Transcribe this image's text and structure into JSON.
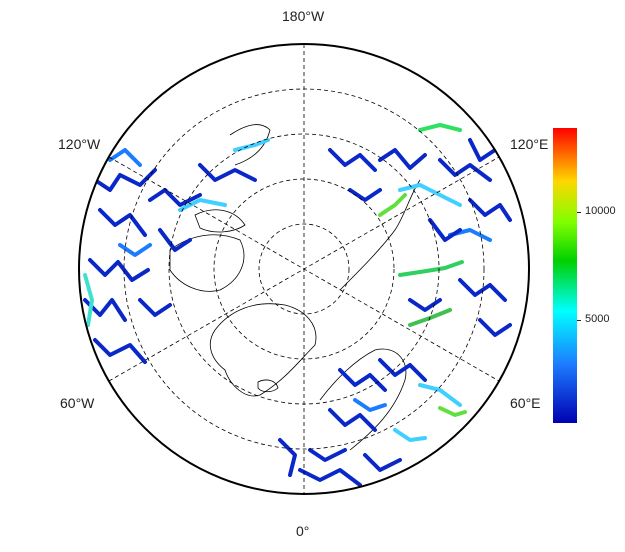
{
  "map": {
    "labels": {
      "top": "180°W",
      "bottom": "0°",
      "upper_left": "120°W",
      "upper_right": "120°E",
      "lower_left": "60°W",
      "lower_right": "60°E"
    },
    "projection": "north polar stereographic",
    "graticule_style": "dashed"
  },
  "legend": {
    "ticks": [
      "10000",
      "5000"
    ],
    "colors": [
      "#0000b0",
      "#1c7cff",
      "#00ffff",
      "#00d000",
      "#80ff00",
      "#ffd700",
      "#ff0000"
    ]
  }
}
